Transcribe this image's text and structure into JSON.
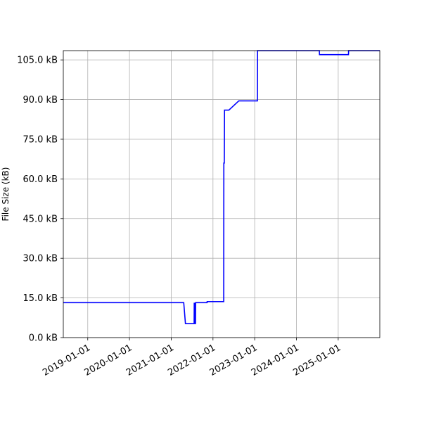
{
  "chart_data": {
    "type": "line",
    "title": "",
    "xlabel": "",
    "ylabel": "File Size (kB)",
    "x_axis_type": "date",
    "xlim": [
      "2018-06-01",
      "2025-12-31"
    ],
    "ylim": [
      0,
      108.5
    ],
    "grid": true,
    "x_ticks": [
      {
        "date": "2019-01-01",
        "label": "2019-01-01"
      },
      {
        "date": "2020-01-01",
        "label": "2020-01-01"
      },
      {
        "date": "2021-01-01",
        "label": "2021-01-01"
      },
      {
        "date": "2022-01-01",
        "label": "2022-01-01"
      },
      {
        "date": "2023-01-01",
        "label": "2023-01-01"
      },
      {
        "date": "2024-01-01",
        "label": "2024-01-01"
      },
      {
        "date": "2025-01-01",
        "label": "2025-01-01"
      }
    ],
    "y_ticks": [
      {
        "value": 0,
        "label": "0.0 kB"
      },
      {
        "value": 15,
        "label": "15.0 kB"
      },
      {
        "value": 30,
        "label": "30.0 kB"
      },
      {
        "value": 45,
        "label": "45.0 kB"
      },
      {
        "value": 60,
        "label": "60.0 kB"
      },
      {
        "value": 75,
        "label": "75.0 kB"
      },
      {
        "value": 90,
        "label": "90.0 kB"
      },
      {
        "value": 105,
        "label": "105.0 kB"
      }
    ],
    "series": [
      {
        "color": "#0000ff",
        "points": [
          {
            "x": "2018-06-01",
            "y": 13.2
          },
          {
            "x": "2021-04-20",
            "y": 13.2
          },
          {
            "x": "2021-05-05",
            "y": 5.3
          },
          {
            "x": "2021-07-20",
            "y": 5.3
          },
          {
            "x": "2021-07-21",
            "y": 13.0
          },
          {
            "x": "2021-07-27",
            "y": 13.0
          },
          {
            "x": "2021-07-28",
            "y": 5.3
          },
          {
            "x": "2021-08-01",
            "y": 5.3
          },
          {
            "x": "2021-08-02",
            "y": 13.2
          },
          {
            "x": "2021-11-10",
            "y": 13.2
          },
          {
            "x": "2021-11-11",
            "y": 13.6
          },
          {
            "x": "2022-04-05",
            "y": 13.6
          },
          {
            "x": "2022-04-06",
            "y": 66.0
          },
          {
            "x": "2022-04-10",
            "y": 66.0
          },
          {
            "x": "2022-04-11",
            "y": 75.0
          },
          {
            "x": "2022-04-12",
            "y": 86.0
          },
          {
            "x": "2022-05-20",
            "y": 86.0
          },
          {
            "x": "2022-08-15",
            "y": 89.5
          },
          {
            "x": "2023-01-25",
            "y": 89.5
          },
          {
            "x": "2023-01-26",
            "y": 108.5
          },
          {
            "x": "2024-07-20",
            "y": 108.5
          },
          {
            "x": "2024-07-21",
            "y": 107.0
          },
          {
            "x": "2025-04-01",
            "y": 107.0
          },
          {
            "x": "2025-04-02",
            "y": 108.5
          },
          {
            "x": "2025-12-31",
            "y": 108.5
          }
        ]
      }
    ]
  }
}
